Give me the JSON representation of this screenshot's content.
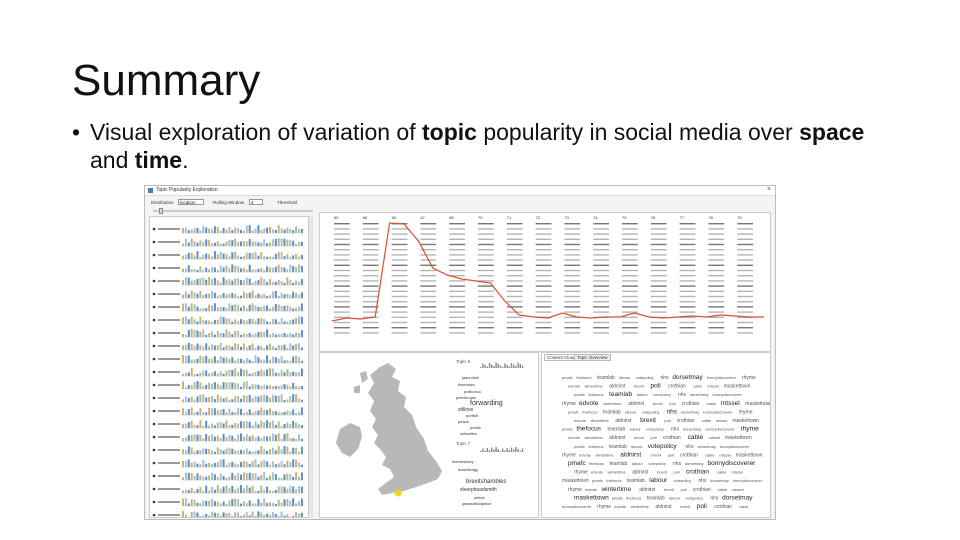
{
  "slide": {
    "title": "Summary",
    "bullet_parts": [
      "Visual exploration of variation of ",
      "topic",
      " popularity in social media over ",
      "space",
      " and ",
      "time",
      "."
    ]
  },
  "app": {
    "window_title": "Topic Popularity Exploration",
    "controls": {
      "distribution_label": "Distribution",
      "distribution_value": "location",
      "rolling_window_label": "Rolling Window",
      "rolling_window_value": "4",
      "threshold_label": "Threshold"
    },
    "timeline_numbers": [
      "65",
      "66",
      "66",
      "67",
      "68",
      "70",
      "71",
      "72",
      "73",
      "74",
      "75",
      "76",
      "77",
      "78",
      "79"
    ],
    "tabs": [
      "Content Cloud",
      "Topic Overview"
    ],
    "topic_labels": [
      "Topic 6",
      "Topic 7"
    ],
    "cloud_words": [
      "pmafc",
      "thefocus",
      "teamlab",
      "labour",
      "votepolicy",
      "nhs",
      "dorsetmay",
      "bonnydiscoverer",
      "rhyme",
      "edvote",
      "wintertime",
      "aldnirst",
      "brexit",
      "poli",
      "crothian",
      "cable",
      "mtssel",
      "maskettown"
    ],
    "map_title_words": [
      "jason4rell",
      "theeolsec",
      "pollkoxou",
      "peterhouse",
      "forwarding",
      "stillove",
      "portfoll",
      "peace",
      "pmafc",
      "cuttedliso",
      "rehouse",
      "flatfromst",
      "election",
      "seaghavie"
    ],
    "bottom_words": [
      "themesdavy",
      "dowelledgy",
      "brexitshambles",
      "sheepheadsmith",
      "article",
      "jaswealthidpiece",
      "polenticm",
      "crivertonaed"
    ],
    "highlight_color": "#f2d21a",
    "map_color": "#b8b8b8",
    "line_color": "#d9522b"
  }
}
